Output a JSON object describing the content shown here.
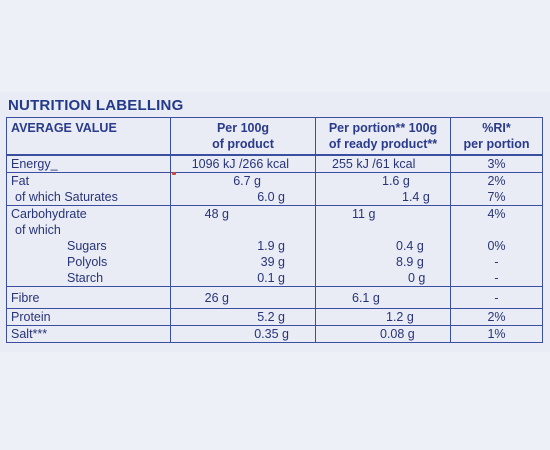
{
  "heading": "NUTRITION LABELLING",
  "headers": {
    "name": "AVERAGE VALUE",
    "per100g": [
      "Per 100g",
      "of product"
    ],
    "perPortion": [
      "Per portion** 100g",
      "of ready product**"
    ],
    "ri": [
      "%RI*",
      "per portion"
    ]
  },
  "rows": [
    {
      "name": [
        "Energy_"
      ],
      "per100g": [
        "1096 kJ /266 kcal"
      ],
      "perPortion": [
        "255 kJ /61 kcal"
      ],
      "ri": [
        "3%"
      ]
    },
    {
      "name": [
        "Fat",
        "of which Saturates"
      ],
      "per100g": [
        "6.7 g",
        "6.0 g"
      ],
      "perPortion": [
        "1.6 g",
        "1.4 g"
      ],
      "ri": [
        "2%",
        "7%"
      ]
    },
    {
      "name": [
        "Carbohydrate",
        "of which",
        "Sugars",
        "Polyols",
        "Starch"
      ],
      "per100g": [
        "48 g",
        "",
        "1.9 g",
        "39 g",
        "0.1 g"
      ],
      "perPortion": [
        "11 g",
        "",
        "0.4 g",
        "8.9 g",
        "0 g"
      ],
      "ri": [
        "4%",
        "",
        "0%",
        "-",
        "-"
      ]
    },
    {
      "name": [
        "Fibre"
      ],
      "per100g": [
        "26 g"
      ],
      "perPortion": [
        "6.1 g"
      ],
      "ri": [
        "-"
      ]
    },
    {
      "name": [
        "Protein"
      ],
      "per100g": [
        "5.2 g"
      ],
      "perPortion": [
        "1.2 g"
      ],
      "ri": [
        "2%"
      ]
    },
    {
      "name": [
        "Salt***"
      ],
      "per100g": [
        "0.35 g"
      ],
      "perPortion": [
        "0.08 g"
      ],
      "ri": [
        "1%"
      ]
    }
  ]
}
